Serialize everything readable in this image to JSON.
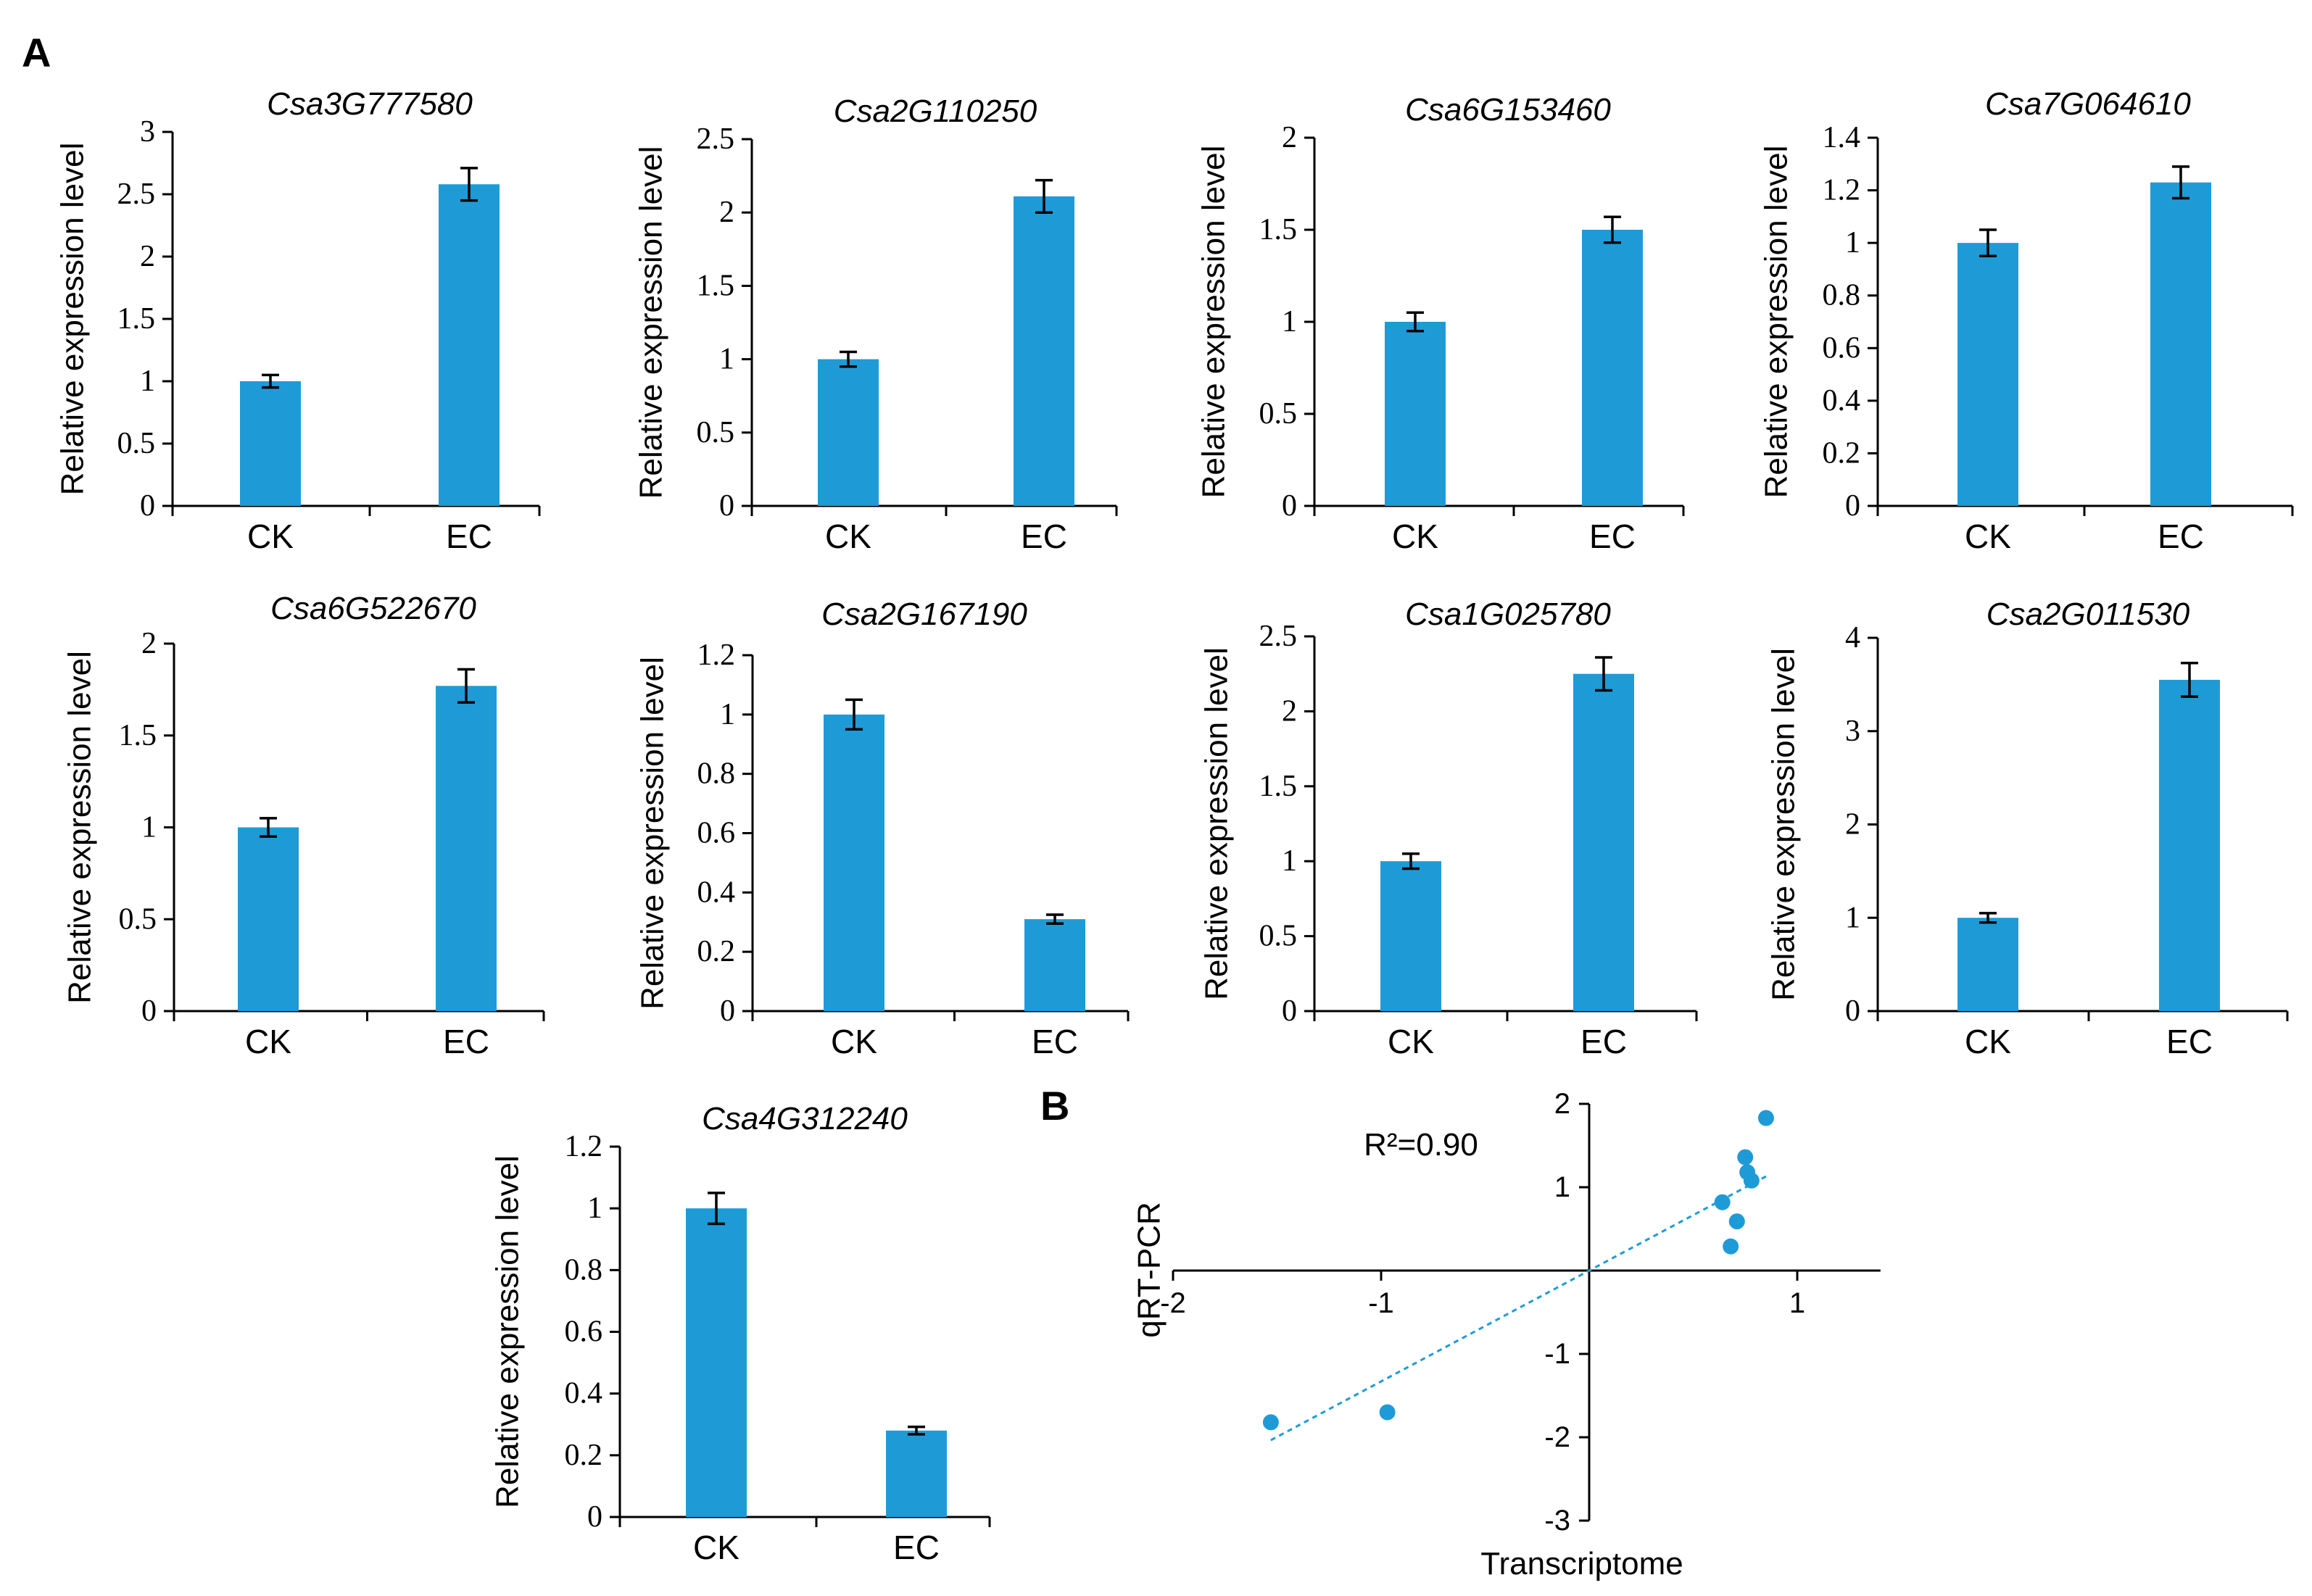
{
  "panels": {
    "a": "A",
    "b": "B"
  },
  "colors": {
    "bar": "#1E9BD7",
    "point": "#1E9BD7",
    "axis": "#000000"
  },
  "chart_data": [
    {
      "type": "bar",
      "title": "Csa3G777580",
      "ylabel": "Relative expression level",
      "categories": [
        "CK",
        "EC"
      ],
      "values": [
        1.0,
        2.58
      ],
      "errors": [
        0.05,
        0.13
      ],
      "ylim": [
        0,
        3
      ],
      "yticks": [
        0,
        0.5,
        1,
        1.5,
        2,
        2.5,
        3
      ],
      "ytick_labels": [
        "0",
        "0.5",
        "1",
        "1.5",
        "2",
        "2.5",
        "3"
      ]
    },
    {
      "type": "bar",
      "title": "Csa2G110250",
      "ylabel": "Relative expression level",
      "categories": [
        "CK",
        "EC"
      ],
      "values": [
        1.0,
        2.11
      ],
      "errors": [
        0.05,
        0.11
      ],
      "ylim": [
        0,
        2.5
      ],
      "yticks": [
        0,
        0.5,
        1,
        1.5,
        2,
        2.5
      ],
      "ytick_labels": [
        "0",
        "0.5",
        "1",
        "1.5",
        "2",
        "2.5"
      ]
    },
    {
      "type": "bar",
      "title": "Csa6G153460",
      "ylabel": "Relative expression level",
      "categories": [
        "CK",
        "EC"
      ],
      "values": [
        1.0,
        1.5
      ],
      "errors": [
        0.05,
        0.07
      ],
      "ylim": [
        0,
        2
      ],
      "yticks": [
        0,
        0.5,
        1,
        1.5,
        2
      ],
      "ytick_labels": [
        "0",
        "0.5",
        "1",
        "1.5",
        "2"
      ]
    },
    {
      "type": "bar",
      "title": "Csa7G064610",
      "ylabel": "Relative expression level",
      "categories": [
        "CK",
        "EC"
      ],
      "values": [
        1.0,
        1.23
      ],
      "errors": [
        0.05,
        0.06
      ],
      "ylim": [
        0,
        1.4
      ],
      "yticks": [
        0,
        0.2,
        0.4,
        0.6,
        0.8,
        1,
        1.2,
        1.4
      ],
      "ytick_labels": [
        "0",
        "0.2",
        "0.4",
        "0.6",
        "0.8",
        "1",
        "1.2",
        "1.4"
      ]
    },
    {
      "type": "bar",
      "title": "Csa6G522670",
      "ylabel": "Relative expression level",
      "categories": [
        "CK",
        "EC"
      ],
      "values": [
        1.0,
        1.77
      ],
      "errors": [
        0.05,
        0.09
      ],
      "ylim": [
        0,
        2
      ],
      "yticks": [
        0,
        0.5,
        1,
        1.5,
        2
      ],
      "ytick_labels": [
        "0",
        "0.5",
        "1",
        "1.5",
        "2"
      ]
    },
    {
      "type": "bar",
      "title": "Csa2G167190",
      "ylabel": "Relative expression level",
      "categories": [
        "CK",
        "EC"
      ],
      "values": [
        1.0,
        0.31
      ],
      "errors": [
        0.05,
        0.015
      ],
      "ylim": [
        0,
        1.2
      ],
      "yticks": [
        0,
        0.2,
        0.4,
        0.6,
        0.8,
        1,
        1.2
      ],
      "ytick_labels": [
        "0",
        "0.2",
        "0.4",
        "0.6",
        "0.8",
        "1",
        "1.2"
      ]
    },
    {
      "type": "bar",
      "title": "Csa1G025780",
      "ylabel": "Relative expression level",
      "categories": [
        "CK",
        "EC"
      ],
      "values": [
        1.0,
        2.25
      ],
      "errors": [
        0.05,
        0.11
      ],
      "ylim": [
        0,
        2.5
      ],
      "yticks": [
        0,
        0.5,
        1,
        1.5,
        2,
        2.5
      ],
      "ytick_labels": [
        "0",
        "0.5",
        "1",
        "1.5",
        "2",
        "2.5"
      ]
    },
    {
      "type": "bar",
      "title": "Csa2G011530",
      "ylabel": "Relative expression level",
      "categories": [
        "CK",
        "EC"
      ],
      "values": [
        1.0,
        3.55
      ],
      "errors": [
        0.05,
        0.18
      ],
      "ylim": [
        0,
        4
      ],
      "yticks": [
        0,
        1,
        2,
        3,
        4
      ],
      "ytick_labels": [
        "0",
        "1",
        "2",
        "3",
        "4"
      ]
    },
    {
      "type": "bar",
      "title": "Csa4G312240",
      "ylabel": "Relative expression level",
      "categories": [
        "CK",
        "EC"
      ],
      "values": [
        1.0,
        0.28
      ],
      "errors": [
        0.05,
        0.012
      ],
      "ylim": [
        0,
        1.2
      ],
      "yticks": [
        0,
        0.2,
        0.4,
        0.6,
        0.8,
        1,
        1.2
      ],
      "ytick_labels": [
        "0",
        "0.2",
        "0.4",
        "0.6",
        "0.8",
        "1",
        "1.2"
      ]
    },
    {
      "type": "scatter",
      "xlabel": "Transcriptome",
      "ylabel": "qRT-PCR",
      "annotation": "R²=0.90",
      "xlim": [
        -2,
        1
      ],
      "ylim": [
        -3,
        2
      ],
      "xticks": [
        -2,
        -1,
        1
      ],
      "xtick_labels": [
        "-2",
        "-1",
        "1"
      ],
      "yticks": [
        -3,
        -2,
        -1,
        1,
        2
      ],
      "ytick_labels": [
        "-3",
        "-2",
        "-1",
        "1",
        "2"
      ],
      "points": [
        {
          "x": -1.53,
          "y": -1.82
        },
        {
          "x": -0.97,
          "y": -1.7
        },
        {
          "x": 0.64,
          "y": 0.82
        },
        {
          "x": 0.68,
          "y": 0.29
        },
        {
          "x": 0.71,
          "y": 0.59
        },
        {
          "x": 0.75,
          "y": 1.36
        },
        {
          "x": 0.76,
          "y": 1.18
        },
        {
          "x": 0.78,
          "y": 1.08
        },
        {
          "x": 0.85,
          "y": 1.83
        }
      ],
      "trendline": {
        "slope": 1.33,
        "intercept": 0.0,
        "x_range": [
          -1.53,
          0.85
        ]
      }
    }
  ]
}
